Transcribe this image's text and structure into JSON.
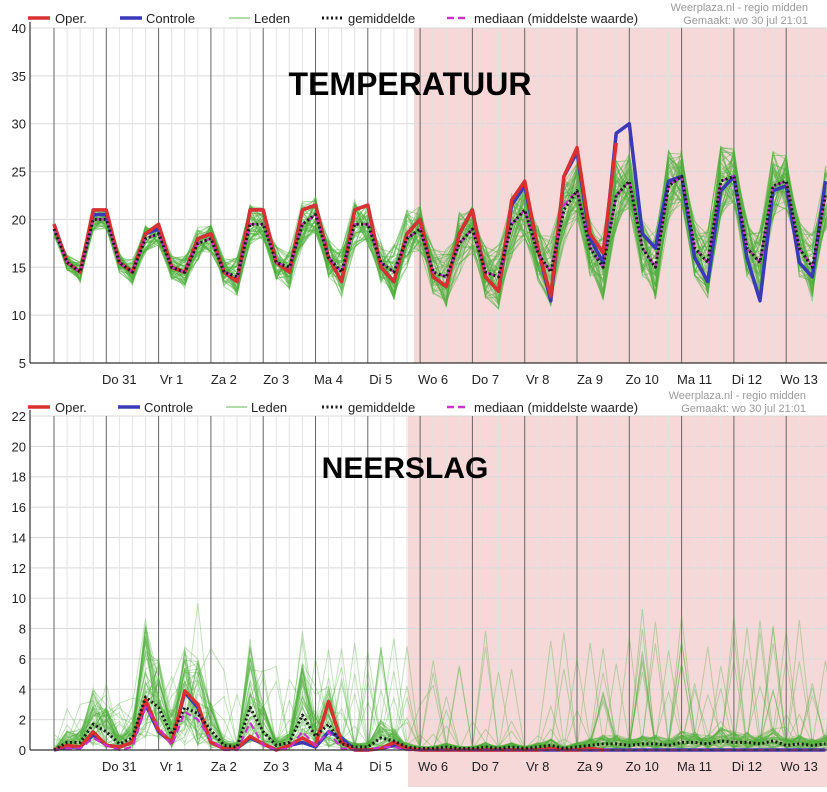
{
  "legend": {
    "oper": "Oper.",
    "controle": "Controle",
    "leden": "Leden",
    "gemiddelde": "gemiddelde",
    "mediaan": "mediaan (middelste waarde)"
  },
  "source": {
    "site": "Weerplaza.nl - regio midden",
    "made": "Gemaakt: wo 30 jul 21:01"
  },
  "colors": {
    "oper": "#d93030",
    "controle": "#3a3ab8",
    "leden": "#4caf3a",
    "gemiddelde": "#1a1a1a",
    "mediaan": "#cc33cc",
    "shade": "#f6d8d8"
  },
  "chart_data": [
    {
      "type": "line",
      "title": "TEMPERATUUR",
      "ylim": [
        5,
        40
      ],
      "yticks": [
        5,
        10,
        15,
        20,
        25,
        30,
        35,
        40
      ],
      "x_range_days": [
        0,
        15
      ],
      "shaded_from_day": 7.5,
      "day_labels": [
        {
          "label": "Do 31",
          "day": 1
        },
        {
          "label": "Vr 1",
          "day": 2
        },
        {
          "label": "Za 2",
          "day": 3
        },
        {
          "label": "Zo 3",
          "day": 4
        },
        {
          "label": "Ma 4",
          "day": 5
        },
        {
          "label": "Di 5",
          "day": 6
        },
        {
          "label": "Wo 6",
          "day": 7
        },
        {
          "label": "Do 7",
          "day": 8
        },
        {
          "label": "Vr 8",
          "day": 9
        },
        {
          "label": "Za 9",
          "day": 10
        },
        {
          "label": "Zo 10",
          "day": 11
        },
        {
          "label": "Ma 11",
          "day": 12
        },
        {
          "label": "Di 12",
          "day": 13
        },
        {
          "label": "Wo 13",
          "day": 14
        }
      ],
      "series": [
        {
          "name": "Oper.",
          "step_days": 0.25,
          "values": [
            19.5,
            15.5,
            14.5,
            21,
            21,
            15.5,
            14.5,
            18.5,
            19.5,
            15,
            14.5,
            18,
            18.5,
            14.5,
            13.5,
            21,
            21,
            15.5,
            14.5,
            21,
            21.5,
            16,
            13.5,
            21,
            21.5,
            15,
            13.5,
            18.5,
            20,
            14,
            13,
            18.5,
            21,
            14,
            12.5,
            22,
            24,
            17,
            12,
            24.5,
            27.5,
            18.5,
            16.5,
            28
          ]
        },
        {
          "name": "Controle",
          "step_days": 0.25,
          "values": [
            19.5,
            15.5,
            14.5,
            20.5,
            20.5,
            15.5,
            14.5,
            18.5,
            19,
            15,
            14.5,
            18,
            18.5,
            14.5,
            13.5,
            21,
            21,
            15.5,
            14.5,
            21,
            21.5,
            16,
            13.5,
            21,
            21.5,
            15,
            13.5,
            18.5,
            20,
            14,
            13,
            18.5,
            21,
            14,
            12.5,
            21.5,
            23.5,
            17,
            11.5,
            24.5,
            27,
            18,
            15.5,
            29,
            30,
            18.5,
            17,
            24,
            24.5,
            16,
            13.5,
            23,
            24.5,
            16,
            11.5,
            23,
            23.5,
            15.5,
            14,
            24,
            26,
            16,
            13.5,
            25.5
          ]
        },
        {
          "name": "gemiddelde",
          "step_days": 0.25,
          "values": [
            19,
            15.5,
            14.5,
            20,
            20,
            15.5,
            14.5,
            18,
            18.5,
            15,
            14.5,
            17.5,
            18,
            14.5,
            14,
            19.5,
            19.5,
            15.5,
            15,
            19.5,
            20.5,
            16,
            14.5,
            19.5,
            19.5,
            15.5,
            14.5,
            18,
            19,
            14.5,
            14,
            17.5,
            19,
            14.5,
            14,
            19.5,
            21,
            16.5,
            14.5,
            21,
            23,
            17,
            15,
            22.5,
            24,
            17,
            15,
            23.5,
            24.5,
            17,
            15.5,
            24,
            24.5,
            17,
            15.5,
            23.5,
            24,
            17,
            15,
            22.5,
            23,
            16.5,
            14.5,
            21
          ]
        },
        {
          "name": "mediaan (middelste waarde)",
          "step_days": 0.25,
          "values": [
            19,
            15.5,
            14.5,
            20,
            20,
            15.5,
            14.5,
            18,
            18.5,
            15,
            14.5,
            17.5,
            18,
            14.5,
            14,
            19.5,
            19.5,
            15.5,
            15,
            19.5,
            20.5,
            16,
            14.5,
            19.5,
            19.5,
            15.5,
            14.5,
            18,
            19,
            14.5,
            14,
            17.5,
            19,
            14.5,
            14,
            19.5,
            21,
            16.5,
            14.5,
            21.5,
            23,
            17,
            15,
            22.5,
            24,
            17,
            15,
            23.5,
            24.5,
            17,
            15.5,
            24,
            24.5,
            17,
            15.5,
            23.5,
            24,
            17,
            15,
            22.5,
            23,
            16.5,
            14.5,
            21
          ]
        }
      ]
    },
    {
      "type": "line",
      "title": "NEERSLAG",
      "ylim": [
        0,
        22
      ],
      "yticks": [
        0,
        2,
        4,
        6,
        8,
        10,
        12,
        14,
        16,
        18,
        20,
        22
      ],
      "x_range_days": [
        0,
        15
      ],
      "shaded_from_day": 7.5,
      "day_labels": [
        {
          "label": "Do 31",
          "day": 1
        },
        {
          "label": "Vr 1",
          "day": 2
        },
        {
          "label": "Za 2",
          "day": 3
        },
        {
          "label": "Zo 3",
          "day": 4
        },
        {
          "label": "Ma 4",
          "day": 5
        },
        {
          "label": "Di 5",
          "day": 6
        },
        {
          "label": "Wo 6",
          "day": 7
        },
        {
          "label": "Do 7",
          "day": 8
        },
        {
          "label": "Vr 8",
          "day": 9
        },
        {
          "label": "Za 9",
          "day": 10
        },
        {
          "label": "Zo 10",
          "day": 11
        },
        {
          "label": "Ma 11",
          "day": 12
        },
        {
          "label": "Di 12",
          "day": 13
        },
        {
          "label": "Wo 13",
          "day": 14
        }
      ],
      "series": [
        {
          "name": "Oper.",
          "step_days": 0.25,
          "values": [
            0,
            0.3,
            0.2,
            1.2,
            0.3,
            0.2,
            0.5,
            3.3,
            1.3,
            0.5,
            3.9,
            3,
            0.5,
            0.1,
            0.1,
            0.9,
            0.4,
            0,
            0.3,
            0.8,
            0.3,
            3.2,
            0.5,
            0,
            0,
            0.1,
            0.5,
            0.1,
            0,
            0,
            0,
            0,
            0,
            0,
            0,
            0,
            0,
            0,
            0.1,
            0,
            0,
            0.1,
            0
          ]
        },
        {
          "name": "Controle",
          "step_days": 0.25,
          "values": [
            0,
            0.2,
            0.2,
            1,
            0.3,
            0.2,
            0.5,
            3,
            1.2,
            0.5,
            3.8,
            2.8,
            0.5,
            0.1,
            0.1,
            0.8,
            0.4,
            0,
            0.3,
            0.5,
            0.2,
            1.2,
            0.8,
            0,
            0,
            0.1,
            0.3,
            0.1,
            0,
            0,
            0,
            0,
            0,
            0,
            0,
            0,
            0,
            0,
            0,
            0,
            0,
            0,
            0,
            0,
            0,
            0,
            0,
            0,
            0,
            0,
            0,
            0,
            0,
            0,
            0,
            0,
            0,
            0,
            0,
            0,
            0,
            0
          ]
        },
        {
          "name": "gemiddelde",
          "step_days": 0.25,
          "values": [
            0,
            0.5,
            0.5,
            1.7,
            1.2,
            0.4,
            0.8,
            3.5,
            2.8,
            1,
            2.8,
            2.4,
            1.3,
            0.3,
            0.2,
            2.8,
            1.2,
            0.3,
            0.5,
            2.3,
            0.9,
            1.7,
            0.4,
            0.2,
            0.2,
            0.8,
            0.6,
            0.2,
            0.1,
            0.1,
            0.2,
            0.1,
            0.1,
            0.2,
            0.1,
            0.2,
            0.1,
            0.2,
            0.3,
            0.1,
            0.2,
            0.3,
            0.4,
            0.4,
            0.3,
            0.4,
            0.4,
            0.3,
            0.5,
            0.5,
            0.4,
            0.6,
            0.5,
            0.5,
            0.4,
            0.6,
            0.3,
            0.4,
            0.3,
            0.4,
            0.2
          ]
        },
        {
          "name": "mediaan (middelste waarde)",
          "step_days": 0.25,
          "values": [
            0,
            0.1,
            0.1,
            0.8,
            0.3,
            0,
            0.2,
            2.8,
            1.5,
            0.3,
            2.5,
            2,
            0.7,
            0,
            0,
            1.8,
            0.3,
            0,
            0.1,
            1.2,
            0.3,
            1.2,
            0.1,
            0,
            0,
            0.2,
            0.2,
            0,
            0,
            0,
            0,
            0,
            0,
            0,
            0,
            0,
            0,
            0,
            0,
            0,
            0,
            0,
            0,
            0,
            0,
            0,
            0,
            0,
            0,
            0,
            0,
            0,
            0,
            0,
            0,
            0,
            0,
            0,
            0,
            0,
            0
          ]
        }
      ]
    }
  ]
}
